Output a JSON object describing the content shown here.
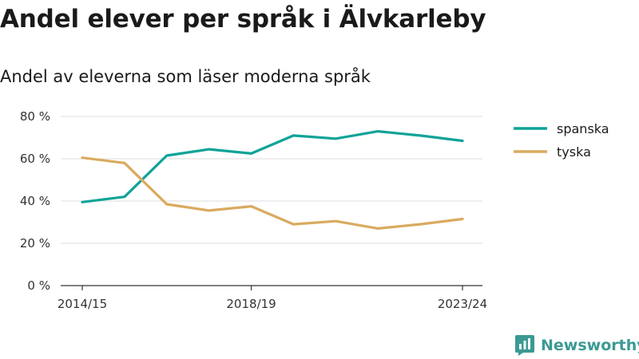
{
  "title": "Andel elever per språk i Älvkarleby",
  "subtitle": "Andel av eleverna som läser moderna språk",
  "brand": {
    "name": "Newsworthy",
    "icon": "bar-chart-logo-icon",
    "color": "#3b9a93"
  },
  "chart_data": {
    "type": "line",
    "x": [
      "2014/15",
      "2015/16",
      "2016/17",
      "2017/18",
      "2018/19",
      "2019/20",
      "2020/21",
      "2021/22",
      "2022/23",
      "2023/24"
    ],
    "x_tick_labels": [
      "2014/15",
      "2018/19",
      "2023/24"
    ],
    "series": [
      {
        "name": "spanska",
        "color": "#0fa397",
        "values": [
          39.5,
          42,
          61.5,
          64.5,
          62.5,
          71,
          69.5,
          73,
          71,
          68.5
        ]
      },
      {
        "name": "tyska",
        "color": "#d9aa5f",
        "values": [
          60.5,
          58,
          38.5,
          35.5,
          37.5,
          29,
          30.5,
          27,
          29,
          31.5
        ]
      }
    ],
    "ylim": [
      0,
      80
    ],
    "y_ticks": [
      "0 %",
      "20 %",
      "40 %",
      "60 %",
      "80 %"
    ],
    "y_tick_values": [
      0,
      20,
      40,
      60,
      80
    ],
    "grid": true,
    "legend": "right"
  }
}
